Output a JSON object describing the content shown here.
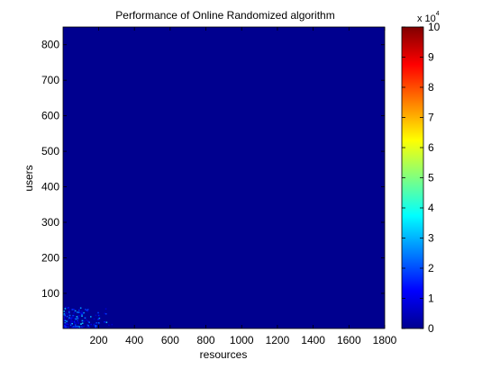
{
  "chart_data": {
    "type": "heatmap",
    "title": "Performance of Online Randomized algorithm",
    "xlabel": "resources",
    "ylabel": "users",
    "xlim": [
      1,
      1800
    ],
    "ylim": [
      1,
      850
    ],
    "xticks": [
      200,
      400,
      600,
      800,
      1000,
      1200,
      1400,
      1600,
      1800
    ],
    "yticks": [
      100,
      200,
      300,
      400,
      500,
      600,
      700,
      800
    ],
    "grid": false,
    "background_value": 0,
    "hotspot_region": {
      "x": [
        1,
        280
      ],
      "y": [
        1,
        60
      ],
      "approx_value_range": [
        0,
        10000
      ]
    },
    "colorbar": {
      "min": 0,
      "max": 10,
      "ticks": [
        0,
        1,
        2,
        3,
        4,
        5,
        6,
        7,
        8,
        9,
        10
      ],
      "multiplier_label": "x 10",
      "multiplier_exponent": "4",
      "colormap": "jet",
      "location": "right"
    }
  }
}
